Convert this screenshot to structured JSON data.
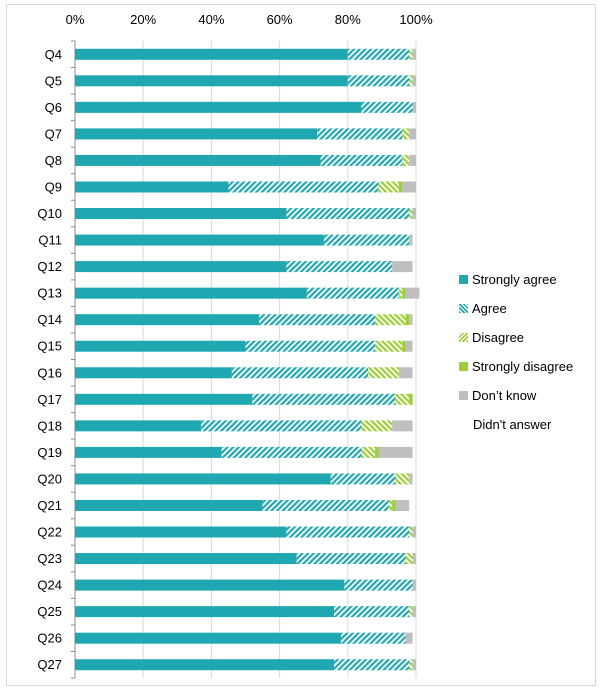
{
  "chart_data": {
    "type": "bar",
    "orientation": "horizontal",
    "stacked": true,
    "percent_stacked": true,
    "xlim": [
      0,
      100
    ],
    "x_ticks": [
      "0%",
      "20%",
      "40%",
      "60%",
      "80%",
      "100%"
    ],
    "x_tick_values": [
      0,
      20,
      40,
      60,
      80,
      100
    ],
    "grid": "vertical",
    "legend_position": "right",
    "categories": [
      "Q4",
      "Q5",
      "Q6",
      "Q7",
      "Q8",
      "Q9",
      "Q10",
      "Q11",
      "Q12",
      "Q13",
      "Q14",
      "Q15",
      "Q16",
      "Q17",
      "Q18",
      "Q19",
      "Q20",
      "Q21",
      "Q22",
      "Q23",
      "Q24",
      "Q25",
      "Q26",
      "Q27"
    ],
    "series": [
      {
        "name": "Strongly agree",
        "color": "#1fa8b2",
        "pattern": "solid",
        "values": [
          80,
          80,
          84,
          71,
          72,
          45,
          62,
          73,
          62,
          68,
          54,
          50,
          46,
          52,
          37,
          43,
          75,
          55,
          62,
          65,
          79,
          76,
          78,
          76
        ]
      },
      {
        "name": "Agree",
        "color": "#1fa8b2",
        "pattern": "hatch",
        "values": [
          18,
          18,
          15,
          25,
          24,
          44,
          36,
          25,
          31,
          27,
          34,
          38,
          40,
          42,
          47,
          41,
          19,
          37,
          36,
          32,
          20,
          22,
          19,
          22
        ]
      },
      {
        "name": "Disagree",
        "color": "#9ccf31",
        "pattern": "hatch",
        "values": [
          1,
          1,
          0,
          2,
          2,
          6,
          1,
          0,
          0,
          1,
          9,
          8,
          9,
          4,
          9,
          4,
          4,
          1,
          1,
          2,
          0,
          1,
          0,
          1
        ]
      },
      {
        "name": "Strongly disagree",
        "color": "#9ccf31",
        "pattern": "solid",
        "values": [
          0,
          0,
          0,
          0,
          0,
          1,
          0,
          0,
          0,
          1,
          1,
          1,
          0,
          1,
          0,
          1,
          0,
          1,
          0,
          0,
          0,
          0,
          0,
          0
        ]
      },
      {
        "name": "Don’t know",
        "color": "#bfbfbf",
        "pattern": "solid",
        "values": [
          1,
          1,
          1,
          2,
          2,
          4,
          1,
          1,
          6,
          4,
          1,
          2,
          4,
          0,
          6,
          10,
          1,
          4,
          1,
          1,
          1,
          1,
          2,
          1
        ]
      },
      {
        "name": "Didn't answer",
        "color": "#ffffff",
        "pattern": "none",
        "values": [
          0,
          0,
          0,
          0,
          0,
          0,
          0,
          1,
          1,
          0,
          1,
          1,
          1,
          1,
          1,
          1,
          1,
          2,
          0,
          0,
          0,
          0,
          1,
          0
        ]
      }
    ]
  }
}
